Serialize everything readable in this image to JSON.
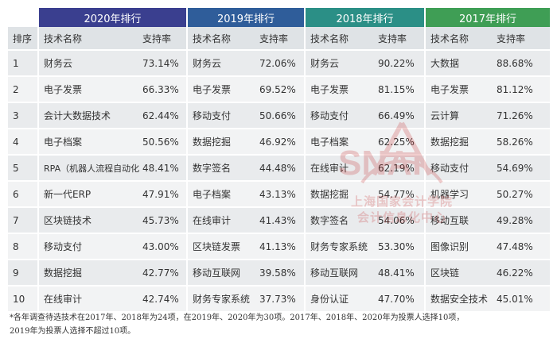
{
  "table": {
    "year_headers": [
      "2020年排行",
      "2019年排行",
      "2018年排行",
      "2017年排行"
    ],
    "col_rank": "排序",
    "col_tech": "技术名称",
    "col_rate": "支持率",
    "rows": [
      {
        "rank": "1",
        "t2020": "财务云",
        "r2020": "73.14%",
        "t2019": "财务云",
        "r2019": "72.06%",
        "t2018": "财务云",
        "r2018": "90.22%",
        "t2017": "大数据",
        "r2017": "88.68%"
      },
      {
        "rank": "2",
        "t2020": "电子发票",
        "r2020": "66.33%",
        "t2019": "电子发票",
        "r2019": "69.52%",
        "t2018": "电子发票",
        "r2018": "81.15%",
        "t2017": "电子发票",
        "r2017": "81.12%"
      },
      {
        "rank": "3",
        "t2020": "会计大数据技术",
        "r2020": "62.44%",
        "t2019": "移动支付",
        "r2019": "50.66%",
        "t2018": "移动支付",
        "r2018": "66.49%",
        "t2017": "云计算",
        "r2017": "71.26%"
      },
      {
        "rank": "4",
        "t2020": "电子档案",
        "r2020": "50.56%",
        "t2019": "数据挖掘",
        "r2019": "46.92%",
        "t2018": "电子档案",
        "r2018": "62.25%",
        "t2017": "数据挖掘",
        "r2017": "58.26%"
      },
      {
        "rank": "5",
        "t2020": "RPA（机器人流程自动化）",
        "r2020": "48.41%",
        "t2019": "数字签名",
        "r2019": "44.48%",
        "t2018": "在线审计",
        "r2018": "62.19%",
        "t2017": "移动支付",
        "r2017": "54.69%"
      },
      {
        "rank": "6",
        "t2020": "新一代ERP",
        "r2020": "47.91%",
        "t2019": "电子档案",
        "r2019": "43.13%",
        "t2018": "数据挖掘",
        "r2018": "54.77%",
        "t2017": "机器学习",
        "r2017": "50.27%"
      },
      {
        "rank": "7",
        "t2020": "区块链技术",
        "r2020": "45.73%",
        "t2019": "在线审计",
        "r2019": "41.43%",
        "t2018": "数字签名",
        "r2018": "54.06%",
        "t2017": "移动互联",
        "r2017": "49.28%"
      },
      {
        "rank": "8",
        "t2020": "移动支付",
        "r2020": "43.00%",
        "t2019": "区块链发票",
        "r2019": "41.13%",
        "t2018": "财务专家系统",
        "r2018": "53.30%",
        "t2017": "图像识别",
        "r2017": "47.48%"
      },
      {
        "rank": "9",
        "t2020": "数据挖掘",
        "r2020": "42.77%",
        "t2019": "移动互联网",
        "r2019": "39.58%",
        "t2018": "移动互联网",
        "r2018": "48.41%",
        "t2017": "区块链",
        "r2017": "46.22%"
      },
      {
        "rank": "10",
        "t2020": "在线审计",
        "r2020": "42.74%",
        "t2019": "财务专家系统",
        "r2019": "37.73%",
        "t2018": "身份认证",
        "r2018": "47.70%",
        "t2017": "数据安全技术",
        "r2017": "45.01%"
      }
    ]
  },
  "watermark": {
    "line1": "上海国家会计学院",
    "line2": "会计信息化中心"
  },
  "footnote": {
    "line1": "*各年调查待选技术在2017年、2018年为24项，在2019年、2020年为30项。2017年、2018年、2020年为投票人选择10项，",
    "line2": "2019年为投票人选择不超过10项。"
  }
}
